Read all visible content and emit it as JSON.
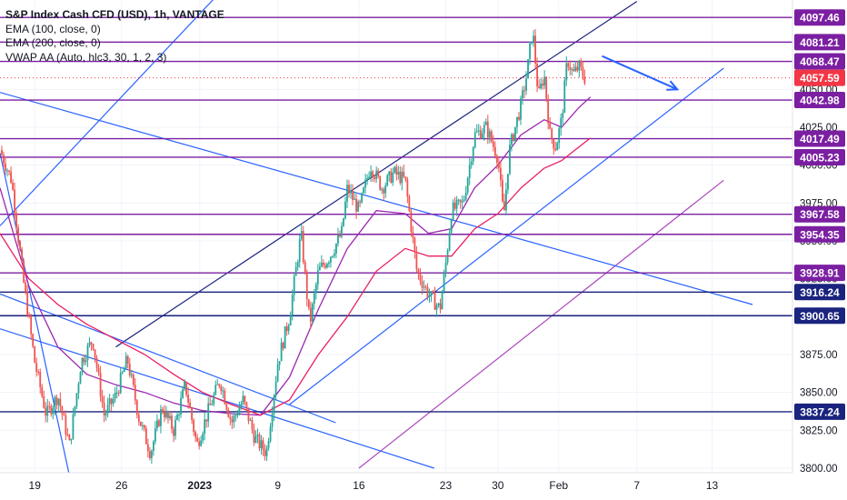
{
  "legend": {
    "title": "S&P Index Cash CFD (USD), 1h, VANTAGE",
    "ema100": "EMA (100, close, 0)",
    "ema200": "EMA (200, close, 0)",
    "vwap": "VWAP AA (Auto, hlc3, 30, 1, 2, 3)"
  },
  "colors": {
    "bull": "#26a69a",
    "bear": "#ef5350",
    "ema100": "#9c27b0",
    "ema200": "#e91e63",
    "horizontal_line": "#7b1fa2",
    "horizontal_line_dark": "#1a237e",
    "trend_blue": "#2962ff",
    "trend_purple": "#ab47bc",
    "current_price": "#f23645",
    "arrow": "#2962ff"
  },
  "chart_data": {
    "type": "candlestick",
    "instrument": "S&P Index Cash CFD (USD)",
    "timeframe": "1h",
    "currency_label": "USD",
    "y_ticks": [
      3800,
      3825,
      3850,
      3875,
      3900,
      3925,
      3950,
      3975,
      4000,
      4025,
      4050
    ],
    "ylim": [
      3797,
      4109
    ],
    "x_ticks": [
      {
        "label": "19",
        "x": 0.06
      },
      {
        "label": "26",
        "x": 0.21
      },
      {
        "label": "2023",
        "x": 0.345
      },
      {
        "label": "9",
        "x": 0.48
      },
      {
        "label": "16",
        "x": 0.62
      },
      {
        "label": "23",
        "x": 0.77
      },
      {
        "label": "30",
        "x": 0.86
      },
      {
        "label": "Feb",
        "x": 0.965
      },
      {
        "label": "7",
        "x": 1.1
      },
      {
        "label": "13",
        "x": 1.23
      }
    ],
    "horizontal_levels": [
      {
        "value": 4097.46,
        "label": "4097.46",
        "style": "purple"
      },
      {
        "value": 4081.21,
        "label": "4081.21",
        "style": "purple"
      },
      {
        "value": 4068.47,
        "label": "4068.47",
        "style": "purple"
      },
      {
        "value": 4042.98,
        "label": "4042.98",
        "style": "purple"
      },
      {
        "value": 4017.49,
        "label": "4017.49",
        "style": "purple"
      },
      {
        "value": 4005.23,
        "label": "4005.23",
        "style": "purple"
      },
      {
        "value": 3967.58,
        "label": "3967.58",
        "style": "purple"
      },
      {
        "value": 3954.35,
        "label": "3954.35",
        "style": "purple"
      },
      {
        "value": 3928.91,
        "label": "3928.91",
        "style": "purple"
      },
      {
        "value": 3916.24,
        "label": "3916.24",
        "style": "dark"
      },
      {
        "value": 3900.65,
        "label": "3900.65",
        "style": "dark"
      },
      {
        "value": 3837.24,
        "label": "3837.24",
        "style": "dark"
      }
    ],
    "current_price": {
      "value": 4057.59,
      "label": "4057.59"
    },
    "price_path": [
      {
        "x": 0.0,
        "y": 4010
      },
      {
        "x": 0.02,
        "y": 3990
      },
      {
        "x": 0.04,
        "y": 3925
      },
      {
        "x": 0.06,
        "y": 3870
      },
      {
        "x": 0.08,
        "y": 3835
      },
      {
        "x": 0.1,
        "y": 3848
      },
      {
        "x": 0.12,
        "y": 3815
      },
      {
        "x": 0.14,
        "y": 3870
      },
      {
        "x": 0.16,
        "y": 3885
      },
      {
        "x": 0.18,
        "y": 3835
      },
      {
        "x": 0.2,
        "y": 3848
      },
      {
        "x": 0.22,
        "y": 3872
      },
      {
        "x": 0.24,
        "y": 3833
      },
      {
        "x": 0.26,
        "y": 3810
      },
      {
        "x": 0.28,
        "y": 3840
      },
      {
        "x": 0.3,
        "y": 3825
      },
      {
        "x": 0.32,
        "y": 3855
      },
      {
        "x": 0.34,
        "y": 3815
      },
      {
        "x": 0.36,
        "y": 3838
      },
      {
        "x": 0.38,
        "y": 3858
      },
      {
        "x": 0.4,
        "y": 3830
      },
      {
        "x": 0.42,
        "y": 3845
      },
      {
        "x": 0.44,
        "y": 3820
      },
      {
        "x": 0.46,
        "y": 3810
      },
      {
        "x": 0.48,
        "y": 3870
      },
      {
        "x": 0.5,
        "y": 3900
      },
      {
        "x": 0.52,
        "y": 3955
      },
      {
        "x": 0.535,
        "y": 3895
      },
      {
        "x": 0.55,
        "y": 3930
      },
      {
        "x": 0.57,
        "y": 3940
      },
      {
        "x": 0.59,
        "y": 3955
      },
      {
        "x": 0.6,
        "y": 3985
      },
      {
        "x": 0.62,
        "y": 3970
      },
      {
        "x": 0.64,
        "y": 4000
      },
      {
        "x": 0.66,
        "y": 3985
      },
      {
        "x": 0.68,
        "y": 3995
      },
      {
        "x": 0.7,
        "y": 3990
      },
      {
        "x": 0.72,
        "y": 3930
      },
      {
        "x": 0.74,
        "y": 3915
      },
      {
        "x": 0.76,
        "y": 3905
      },
      {
        "x": 0.77,
        "y": 3935
      },
      {
        "x": 0.78,
        "y": 3970
      },
      {
        "x": 0.8,
        "y": 3975
      },
      {
        "x": 0.82,
        "y": 4020
      },
      {
        "x": 0.84,
        "y": 4025
      },
      {
        "x": 0.86,
        "y": 4005
      },
      {
        "x": 0.87,
        "y": 3965
      },
      {
        "x": 0.88,
        "y": 4010
      },
      {
        "x": 0.9,
        "y": 4040
      },
      {
        "x": 0.91,
        "y": 4060
      },
      {
        "x": 0.92,
        "y": 4090
      },
      {
        "x": 0.93,
        "y": 4045
      },
      {
        "x": 0.94,
        "y": 4060
      },
      {
        "x": 0.95,
        "y": 4020
      },
      {
        "x": 0.96,
        "y": 4012
      },
      {
        "x": 0.97,
        "y": 4030
      },
      {
        "x": 0.98,
        "y": 4070
      },
      {
        "x": 0.99,
        "y": 4060
      },
      {
        "x": 1.0,
        "y": 4065
      },
      {
        "x": 1.01,
        "y": 4057.59
      }
    ],
    "ema100": [
      {
        "x": 0.0,
        "y": 3985
      },
      {
        "x": 0.05,
        "y": 3920
      },
      {
        "x": 0.1,
        "y": 3880
      },
      {
        "x": 0.15,
        "y": 3862
      },
      {
        "x": 0.2,
        "y": 3855
      },
      {
        "x": 0.25,
        "y": 3850
      },
      {
        "x": 0.3,
        "y": 3843
      },
      {
        "x": 0.35,
        "y": 3838
      },
      {
        "x": 0.4,
        "y": 3836
      },
      {
        "x": 0.45,
        "y": 3835
      },
      {
        "x": 0.5,
        "y": 3860
      },
      {
        "x": 0.55,
        "y": 3905
      },
      {
        "x": 0.6,
        "y": 3945
      },
      {
        "x": 0.65,
        "y": 3970
      },
      {
        "x": 0.7,
        "y": 3968
      },
      {
        "x": 0.74,
        "y": 3955
      },
      {
        "x": 0.78,
        "y": 3958
      },
      {
        "x": 0.82,
        "y": 3985
      },
      {
        "x": 0.86,
        "y": 4000
      },
      {
        "x": 0.9,
        "y": 4020
      },
      {
        "x": 0.94,
        "y": 4030
      },
      {
        "x": 0.97,
        "y": 4025
      },
      {
        "x": 1.0,
        "y": 4038
      },
      {
        "x": 1.02,
        "y": 4045
      }
    ],
    "ema200": [
      {
        "x": 0.0,
        "y": 3955
      },
      {
        "x": 0.05,
        "y": 3925
      },
      {
        "x": 0.1,
        "y": 3908
      },
      {
        "x": 0.15,
        "y": 3895
      },
      {
        "x": 0.2,
        "y": 3885
      },
      {
        "x": 0.25,
        "y": 3875
      },
      {
        "x": 0.3,
        "y": 3862
      },
      {
        "x": 0.35,
        "y": 3850
      },
      {
        "x": 0.4,
        "y": 3842
      },
      {
        "x": 0.45,
        "y": 3835
      },
      {
        "x": 0.5,
        "y": 3845
      },
      {
        "x": 0.55,
        "y": 3875
      },
      {
        "x": 0.6,
        "y": 3900
      },
      {
        "x": 0.65,
        "y": 3930
      },
      {
        "x": 0.7,
        "y": 3945
      },
      {
        "x": 0.74,
        "y": 3940
      },
      {
        "x": 0.78,
        "y": 3940
      },
      {
        "x": 0.82,
        "y": 3958
      },
      {
        "x": 0.86,
        "y": 3968
      },
      {
        "x": 0.9,
        "y": 3985
      },
      {
        "x": 0.94,
        "y": 3998
      },
      {
        "x": 0.97,
        "y": 4003
      },
      {
        "x": 1.0,
        "y": 4012
      },
      {
        "x": 1.02,
        "y": 4018
      }
    ],
    "trendlines": [
      {
        "name": "upper-channel-dark",
        "color": "dark",
        "from": {
          "x": 0.2,
          "y": 3880
        },
        "to": {
          "x": 1.1,
          "y": 4108
        }
      },
      {
        "name": "lower-channel-blue",
        "color": "blue",
        "from": {
          "x": 0.5,
          "y": 3842
        },
        "to": {
          "x": 1.25,
          "y": 4064
        }
      },
      {
        "name": "purple-channel",
        "color": "purple",
        "from": {
          "x": 0.62,
          "y": 3800
        },
        "to": {
          "x": 1.25,
          "y": 3990
        }
      },
      {
        "name": "long-descending",
        "color": "blue",
        "from": {
          "x": 0.0,
          "y": 4048
        },
        "to": {
          "x": 1.3,
          "y": 3908
        }
      },
      {
        "name": "descending-lower-1",
        "color": "blue",
        "from": {
          "x": 0.0,
          "y": 3892
        },
        "to": {
          "x": 0.75,
          "y": 3800
        }
      },
      {
        "name": "descending-lower-2",
        "color": "blue",
        "from": {
          "x": 0.0,
          "y": 3915
        },
        "to": {
          "x": 0.58,
          "y": 3830
        }
      },
      {
        "name": "steep-left",
        "color": "blue",
        "from": {
          "x": 0.0,
          "y": 4008
        },
        "to": {
          "x": 0.12,
          "y": 3795
        }
      },
      {
        "name": "ascending-left",
        "color": "blue",
        "from": {
          "x": 0.0,
          "y": 3960
        },
        "to": {
          "x": 0.37,
          "y": 4110
        }
      }
    ],
    "arrow": {
      "from": {
        "x": 1.04,
        "y": 4072
      },
      "to": {
        "x": 1.17,
        "y": 4050
      }
    }
  }
}
